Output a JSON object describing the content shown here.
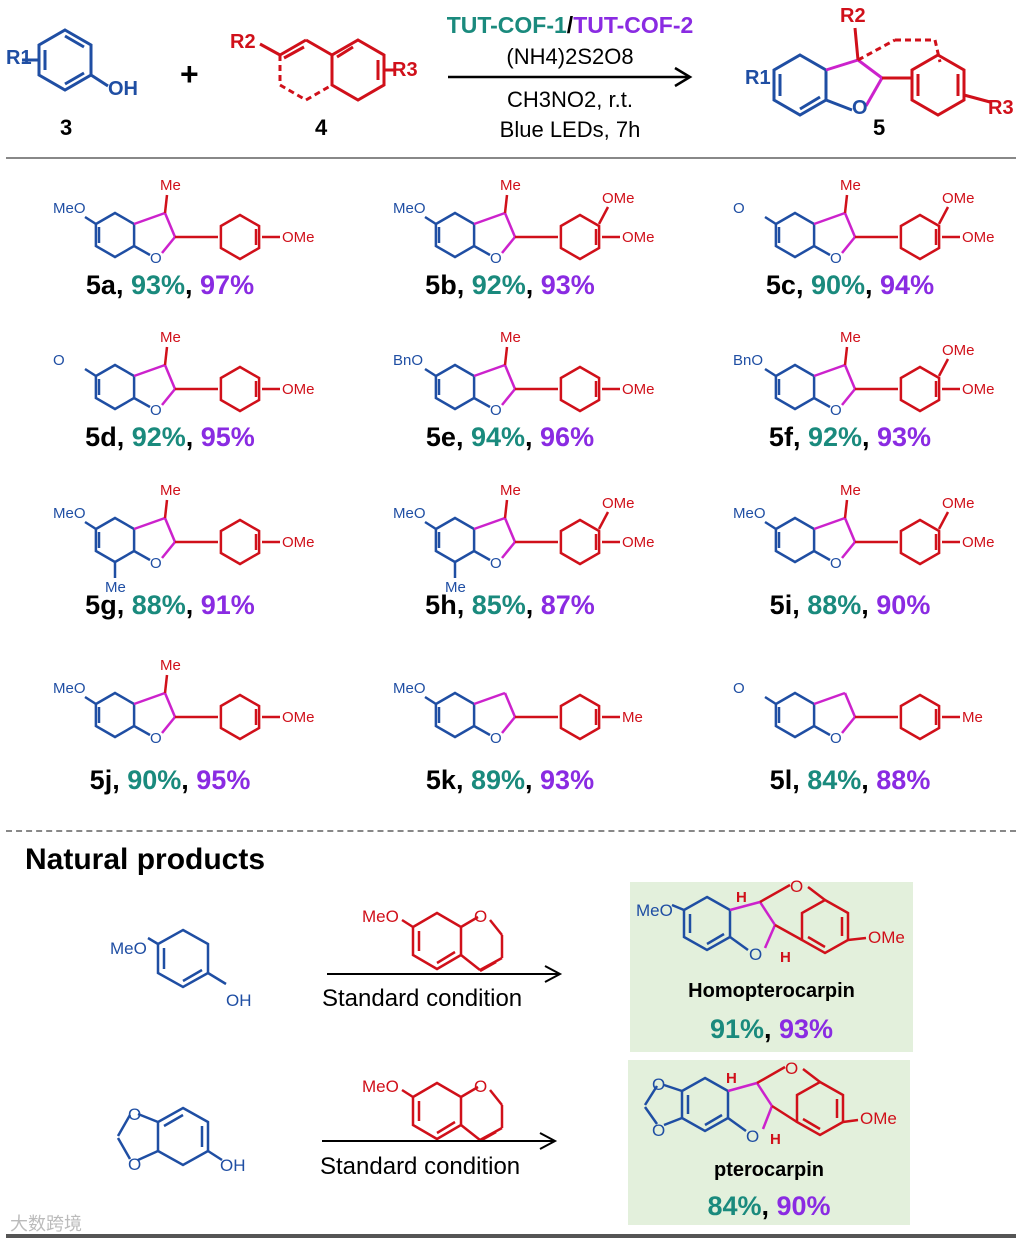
{
  "scheme": {
    "reactant_a": {
      "label": "3",
      "substituent": "R1",
      "group": "OH"
    },
    "reactant_b": {
      "label": "4",
      "substituents": [
        "R2",
        "R3"
      ]
    },
    "product": {
      "label": "5",
      "substituents": [
        "R1",
        "R2",
        "R3"
      ],
      "ring_atom": "O"
    },
    "plus": "+",
    "catalyst_1": "TUT-COF-1",
    "catalyst_separator": "/",
    "catalyst_2": "TUT-COF-2",
    "oxidant": "(NH4)2S2O8",
    "solvent": "CH3NO2, r.t.",
    "light": "Blue LEDs, 7h"
  },
  "colors": {
    "teal": "#1a8a7d",
    "purple": "#8a2be2",
    "blue": "#1f4ea3",
    "red": "#d0101a",
    "magenta": "#cc22cc",
    "green_box": "#e3f0dc"
  },
  "products": [
    {
      "id": "5a",
      "sep": ", ",
      "cof1": "93%",
      "sep2": ", ",
      "cof2": "97%",
      "subs": {
        "left": "MeO",
        "me": "Me",
        "aryl": [
          "OMe"
        ]
      }
    },
    {
      "id": "5b",
      "sep": ", ",
      "cof1": "92%",
      "sep2": ", ",
      "cof2": "93%",
      "subs": {
        "left": "MeO",
        "me": "Me",
        "aryl": [
          "OMe",
          "OMe"
        ]
      }
    },
    {
      "id": "5c",
      "sep": ", ",
      "cof1": "90%",
      "sep2": ", ",
      "cof2": "94%",
      "subs": {
        "left": "O",
        "me": "Me",
        "aryl": [
          "OMe",
          "OMe"
        ]
      }
    },
    {
      "id": "5d",
      "sep": ", ",
      "cof1": "92%",
      "sep2": ", ",
      "cof2": "95%",
      "subs": {
        "left": "O",
        "me": "Me",
        "aryl": [
          "OMe"
        ]
      }
    },
    {
      "id": "5e",
      "sep": ", ",
      "cof1": "94%",
      "sep2": ", ",
      "cof2": "96%",
      "subs": {
        "left": "BnO",
        "me": "Me",
        "aryl": [
          "OMe"
        ]
      }
    },
    {
      "id": "5f",
      "sep": ", ",
      "cof1": "92%",
      "sep2": ", ",
      "cof2": "93%",
      "subs": {
        "left": "BnO",
        "me": "Me",
        "aryl": [
          "OMe",
          "OMe"
        ]
      }
    },
    {
      "id": "5g",
      "sep": ", ",
      "cof1": "88%",
      "sep2": ", ",
      "cof2": "91%",
      "subs": {
        "left": "MeO",
        "me": "Me",
        "extra": "Me",
        "aryl": [
          "OMe"
        ]
      }
    },
    {
      "id": "5h",
      "sep": ", ",
      "cof1": "85%",
      "sep2": ", ",
      "cof2": "87%",
      "subs": {
        "left": "MeO",
        "me": "Me",
        "extra": "Me",
        "aryl": [
          "OMe",
          "OMe"
        ]
      }
    },
    {
      "id": "5i",
      "sep": ", ",
      "cof1": "88%",
      "sep2": ", ",
      "cof2": "90%",
      "subs": {
        "left": "MeO",
        "me": "Me",
        "aryl": [
          "OMe",
          "OMe"
        ]
      }
    },
    {
      "id": "5j",
      "sep": ", ",
      "cof1": "90%",
      "sep2": ", ",
      "cof2": "95%",
      "subs": {
        "left": "MeO",
        "me": "Me",
        "aryl": [
          "OMe"
        ]
      }
    },
    {
      "id": "5k",
      "sep": ", ",
      "cof1": "89%",
      "sep2": ", ",
      "cof2": "93%",
      "subs": {
        "left": "MeO",
        "aryl": [
          "Me"
        ]
      }
    },
    {
      "id": "5l",
      "sep": ", ",
      "cof1": "84%",
      "sep2": ", ",
      "cof2": "88%",
      "subs": {
        "left": "O",
        "aryl": [
          "Me"
        ]
      }
    }
  ],
  "natural_products": {
    "heading": "Natural products",
    "condition": "Standard condition",
    "reagent_substituent": "MeO",
    "reagent_ring_atom": "O",
    "items": [
      {
        "name": "Homopterocarpin",
        "cof1": "91%",
        "sep": ", ",
        "cof2": "93%",
        "phenol_substituent": "MeO",
        "phenol_group": "OH",
        "product_left": "MeO",
        "product_right": "OMe",
        "h": "H",
        "ring_o": "O"
      },
      {
        "name": "pterocarpin",
        "cof1": "84%",
        "sep": ", ",
        "cof2": "90%",
        "phenol_substituent": "O",
        "phenol_group": "OH",
        "product_left": "O",
        "product_right": "OMe",
        "h": "H",
        "ring_o": "O"
      }
    ]
  },
  "watermark": "大数跨境"
}
